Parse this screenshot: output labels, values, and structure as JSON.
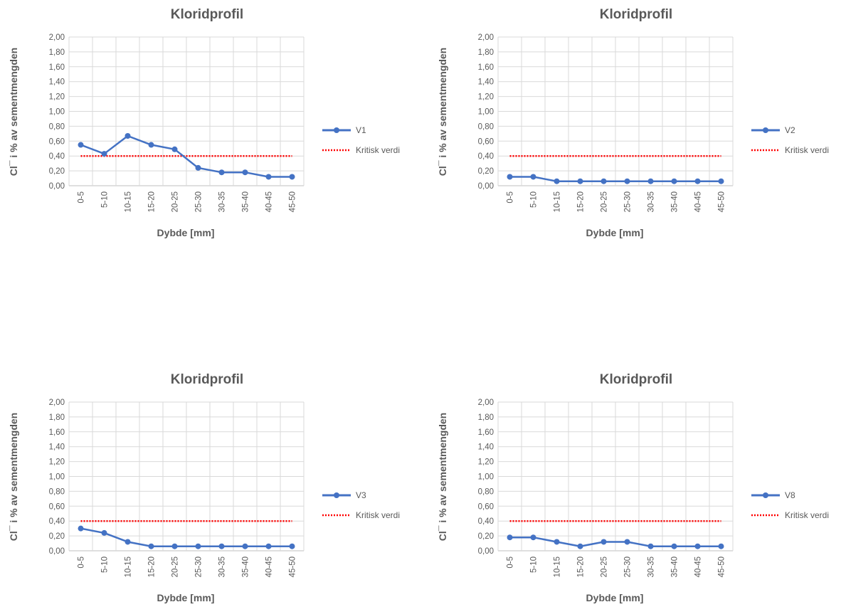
{
  "colors": {
    "series": "#4472C4",
    "critical": "#FF0000",
    "grid": "#D9D9D9",
    "text": "#595959"
  },
  "chart_data": [
    {
      "type": "line",
      "title": "Kloridprofil",
      "xlabel": "Dybde [mm]",
      "ylabel": "Cl¯ i % av sementmengden",
      "categories": [
        "0-5",
        "5-10",
        "10-15",
        "15-20",
        "20-25",
        "25-30",
        "30-35",
        "35-40",
        "40-45",
        "45-50"
      ],
      "ylim": [
        0,
        2
      ],
      "yticks": [
        "0,00",
        "0,20",
        "0,40",
        "0,60",
        "0,80",
        "1,00",
        "1,20",
        "1,40",
        "1,60",
        "1,80",
        "2,00"
      ],
      "grid": true,
      "legend": "right",
      "series": [
        {
          "name": "V1",
          "values": [
            0.55,
            0.43,
            0.67,
            0.55,
            0.49,
            0.24,
            0.18,
            0.18,
            0.12,
            0.12
          ]
        },
        {
          "name": "Kritisk verdi",
          "values": [
            0.4,
            0.4,
            0.4,
            0.4,
            0.4,
            0.4,
            0.4,
            0.4,
            0.4,
            0.4
          ]
        }
      ]
    },
    {
      "type": "line",
      "title": "Kloridprofil",
      "xlabel": "Dybde [mm]",
      "ylabel": "Cl¯ i % av sementmengden",
      "categories": [
        "0-5",
        "5-10",
        "10-15",
        "15-20",
        "20-25",
        "25-30",
        "30-35",
        "35-40",
        "40-45",
        "45-50"
      ],
      "ylim": [
        0,
        2
      ],
      "yticks": [
        "0,00",
        "0,20",
        "0,40",
        "0,60",
        "0,80",
        "1,00",
        "1,20",
        "1,40",
        "1,60",
        "1,80",
        "2,00"
      ],
      "grid": true,
      "legend": "right",
      "series": [
        {
          "name": "V2",
          "values": [
            0.12,
            0.12,
            0.06,
            0.06,
            0.06,
            0.06,
            0.06,
            0.06,
            0.06,
            0.06
          ]
        },
        {
          "name": "Kritisk verdi",
          "values": [
            0.4,
            0.4,
            0.4,
            0.4,
            0.4,
            0.4,
            0.4,
            0.4,
            0.4,
            0.4
          ]
        }
      ]
    },
    {
      "type": "line",
      "title": "Kloridprofil",
      "xlabel": "Dybde [mm]",
      "ylabel": "Cl¯ i % av sementmengden",
      "categories": [
        "0-5",
        "5-10",
        "10-15",
        "15-20",
        "20-25",
        "25-30",
        "30-35",
        "35-40",
        "40-45",
        "45-50"
      ],
      "ylim": [
        0,
        2
      ],
      "yticks": [
        "0,00",
        "0,20",
        "0,40",
        "0,60",
        "0,80",
        "1,00",
        "1,20",
        "1,40",
        "1,60",
        "1,80",
        "2,00"
      ],
      "grid": true,
      "legend": "right",
      "series": [
        {
          "name": "V3",
          "values": [
            0.3,
            0.24,
            0.12,
            0.06,
            0.06,
            0.06,
            0.06,
            0.06,
            0.06,
            0.06
          ]
        },
        {
          "name": "Kritisk verdi",
          "values": [
            0.4,
            0.4,
            0.4,
            0.4,
            0.4,
            0.4,
            0.4,
            0.4,
            0.4,
            0.4
          ]
        }
      ]
    },
    {
      "type": "line",
      "title": "Kloridprofil",
      "xlabel": "Dybde [mm]",
      "ylabel": "Cl¯ i % av sementmengden",
      "categories": [
        "0-5",
        "5-10",
        "10-15",
        "15-20",
        "20-25",
        "25-30",
        "30-35",
        "35-40",
        "40-45",
        "45-50"
      ],
      "ylim": [
        0,
        2
      ],
      "yticks": [
        "0,00",
        "0,20",
        "0,40",
        "0,60",
        "0,80",
        "1,00",
        "1,20",
        "1,40",
        "1,60",
        "1,80",
        "2,00"
      ],
      "grid": true,
      "legend": "right",
      "series": [
        {
          "name": "V8",
          "values": [
            0.18,
            0.18,
            0.12,
            0.06,
            0.12,
            0.12,
            0.06,
            0.06,
            0.06,
            0.06
          ]
        },
        {
          "name": "Kritisk verdi",
          "values": [
            0.4,
            0.4,
            0.4,
            0.4,
            0.4,
            0.4,
            0.4,
            0.4,
            0.4,
            0.4
          ]
        }
      ]
    }
  ]
}
